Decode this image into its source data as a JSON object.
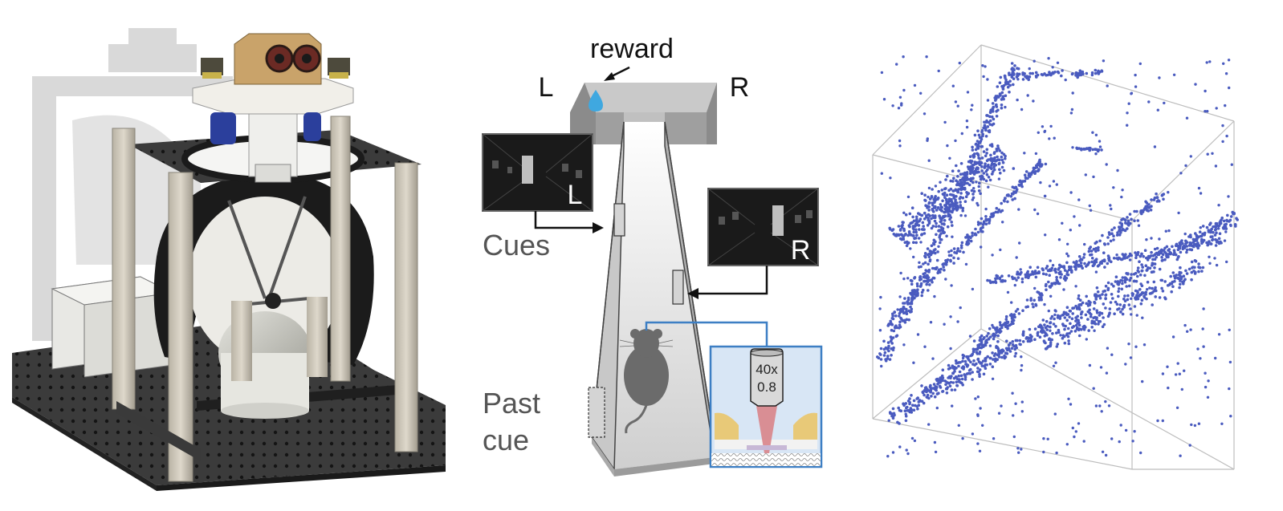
{
  "task_diagram": {
    "reward_label": "reward",
    "left_label": "L",
    "right_label": "R",
    "cues_label": "Cues",
    "past_cue_line1": "Past",
    "past_cue_line2": "cue",
    "left_screen_letter": "L",
    "right_screen_letter": "R",
    "objective_mag": "40x",
    "objective_na": "0.8"
  },
  "colors": {
    "point_blue": "#4a5bbf",
    "water_blue": "#3fa8e0",
    "window_blue": "#3d7fc4",
    "screen_dark": "#1a1a1a",
    "frame_gray": "#c9c3b6"
  }
}
